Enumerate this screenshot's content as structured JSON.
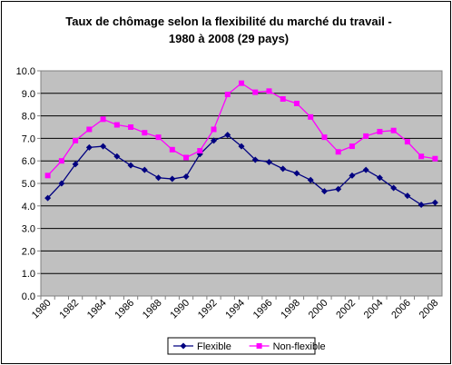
{
  "chart_data": {
    "type": "line",
    "title": "Taux de chômage selon la flexibilité du marché du travail -",
    "subtitle": "1980 à 2008 (29 pays)",
    "xlabel": "",
    "ylabel": "",
    "ylim": [
      0,
      10
    ],
    "y_ticks": [
      "0.0",
      "1.0",
      "2.0",
      "3.0",
      "4.0",
      "5.0",
      "6.0",
      "7.0",
      "8.0",
      "9.0",
      "10.0"
    ],
    "x": [
      1980,
      1981,
      1982,
      1983,
      1984,
      1985,
      1986,
      1987,
      1988,
      1989,
      1990,
      1991,
      1992,
      1993,
      1994,
      1995,
      1996,
      1997,
      1998,
      1999,
      2000,
      2001,
      2002,
      2003,
      2004,
      2005,
      2006,
      2007,
      2008
    ],
    "x_tick_labels": [
      "1980",
      "1982",
      "1984",
      "1986",
      "1988",
      "1990",
      "1992",
      "1994",
      "1996",
      "1998",
      "2000",
      "2002",
      "2004",
      "2006",
      "2008"
    ],
    "grid": "horizontal",
    "plot_background": "#c0c0c0",
    "legend_position": "bottom",
    "series": [
      {
        "name": "Flexible",
        "color": "#000080",
        "marker": "diamond",
        "values": [
          4.35,
          5.0,
          5.85,
          6.6,
          6.65,
          6.2,
          5.8,
          5.6,
          5.25,
          5.2,
          5.3,
          6.3,
          6.9,
          7.15,
          6.65,
          6.05,
          5.95,
          5.65,
          5.45,
          5.15,
          4.65,
          4.75,
          5.35,
          5.6,
          5.25,
          4.8,
          4.45,
          4.05,
          4.15
        ]
      },
      {
        "name": "Non-flexible",
        "color": "#ff00ff",
        "marker": "square",
        "values": [
          5.35,
          6.0,
          6.9,
          7.4,
          7.85,
          7.6,
          7.5,
          7.25,
          7.05,
          6.5,
          6.15,
          6.45,
          7.4,
          8.95,
          9.45,
          9.05,
          9.1,
          8.75,
          8.55,
          7.95,
          7.05,
          6.4,
          6.65,
          7.1,
          7.3,
          7.35,
          6.85,
          6.2,
          6.1
        ]
      }
    ]
  }
}
